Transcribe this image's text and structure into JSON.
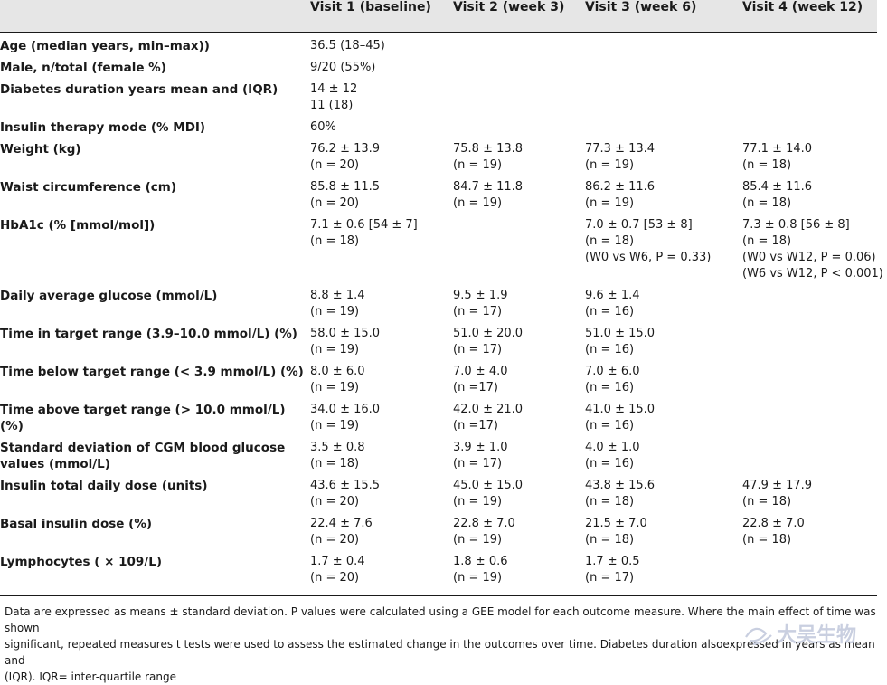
{
  "table": {
    "columns": [
      "",
      "Visit 1 (baseline)",
      "Visit 2 (week 3)",
      "Visit 3 (week 6)",
      "Visit 4 (week 12)"
    ],
    "rows": [
      {
        "variable": "Age (median years, min–max))",
        "v1": [
          "36.5 (18–45)"
        ],
        "v2": [],
        "v3": [],
        "v4": []
      },
      {
        "variable": "Male, n/total (female %)",
        "v1": [
          "9/20 (55%)"
        ],
        "v2": [],
        "v3": [],
        "v4": []
      },
      {
        "variable": "Diabetes duration years mean and (IQR)",
        "v1": [
          "14 ± 12",
          "11 (18)"
        ],
        "v2": [],
        "v3": [],
        "v4": []
      },
      {
        "variable": "Insulin therapy mode (% MDI)",
        "v1": [
          "60%"
        ],
        "v2": [],
        "v3": [],
        "v4": []
      },
      {
        "variable": "Weight (kg)",
        "v1": [
          "76.2 ± 13.9",
          "(n = 20)"
        ],
        "v2": [
          "75.8 ± 13.8",
          "(n = 19)"
        ],
        "v3": [
          "77.3 ± 13.4",
          "(n = 19)"
        ],
        "v4": [
          "77.1 ± 14.0",
          "(n = 18)"
        ]
      },
      {
        "variable": "Waist circumference (cm)",
        "v1": [
          "85.8 ± 11.5",
          "(n = 20)"
        ],
        "v2": [
          "84.7 ± 11.8",
          "(n = 19)"
        ],
        "v3": [
          "86.2 ± 11.6",
          "(n = 19)"
        ],
        "v4": [
          "85.4 ± 11.6",
          "(n = 18)"
        ]
      },
      {
        "variable": "HbA1c (% [mmol/mol])",
        "v1": [
          "7.1 ± 0.6 [54 ± 7]",
          "(n = 18)"
        ],
        "v2": [],
        "v3": [
          "7.0 ± 0.7  [53 ± 8]",
          "(n = 18)",
          "(W0 vs W6, P = 0.33)"
        ],
        "v4": [
          "7.3 ± 0.8 [56 ± 8]",
          "(n = 18)",
          "(W0 vs W12, P = 0.06)",
          "(W6 vs W12, P < 0.001)"
        ]
      },
      {
        "variable": "Daily average glucose (mmol/L)",
        "v1": [
          "8.8 ± 1.4",
          "(n = 19)"
        ],
        "v2": [
          "9.5 ± 1.9",
          "(n = 17)"
        ],
        "v3": [
          "9.6 ± 1.4",
          "(n = 16)"
        ],
        "v4": []
      },
      {
        "variable": "Time in target range (3.9–10.0 mmol/L) (%)",
        "v1": [
          "58.0 ± 15.0",
          "(n = 19)"
        ],
        "v2": [
          "51.0 ± 20.0",
          "(n = 17)"
        ],
        "v3": [
          "51.0 ± 15.0",
          "(n = 16)"
        ],
        "v4": []
      },
      {
        "variable": "Time below target range (< 3.9 mmol/L) (%)",
        "v1": [
          "8.0 ± 6.0",
          "(n = 19)"
        ],
        "v2": [
          "7.0 ± 4.0",
          "(n  =17)"
        ],
        "v3": [
          "7.0 ± 6.0",
          "(n = 16)"
        ],
        "v4": []
      },
      {
        "variable": "Time above target range (> 10.0 mmol/L)  (%)",
        "v1": [
          "34.0 ± 16.0",
          "(n = 19)"
        ],
        "v2": [
          "42.0 ± 21.0",
          "(n  =17)"
        ],
        "v3": [
          "41.0 ± 15.0",
          "(n = 16)"
        ],
        "v4": []
      },
      {
        "variable": "Standard deviation of CGM blood glucose values (mmol/L)",
        "v1": [
          "3.5 ± 0.8",
          "(n = 18)"
        ],
        "v2": [
          "3.9 ± 1.0",
          "(n = 17)"
        ],
        "v3": [
          "4.0 ± 1.0",
          "(n = 16)"
        ],
        "v4": []
      },
      {
        "variable": "Insulin total daily dose (units)",
        "v1": [
          "43.6 ± 15.5",
          "(n = 20)"
        ],
        "v2": [
          "45.0 ± 15.0",
          "(n = 19)"
        ],
        "v3": [
          "43.8 ± 15.6",
          "(n = 18)"
        ],
        "v4": [
          "47.9 ± 17.9",
          "(n = 18)"
        ]
      },
      {
        "variable": "Basal insulin dose (%)",
        "v1": [
          "22.4 ± 7.6",
          "(n = 20)"
        ],
        "v2": [
          "22.8 ± 7.0",
          "(n = 19)"
        ],
        "v3": [
          "21.5 ± 7.0",
          "(n = 18)"
        ],
        "v4": [
          "22.8 ± 7.0",
          "(n = 18)"
        ]
      },
      {
        "variable": "Lymphocytes ( × 109/L)",
        "v1": [
          "1.7 ± 0.4",
          "(n = 20)"
        ],
        "v2": [
          "1.8 ± 0.6",
          "(n = 19)"
        ],
        "v3": [
          "1.7 ± 0.5",
          "(n = 17)"
        ],
        "v4": []
      }
    ]
  },
  "footnote": {
    "line1": "Data are expressed as means ± standard deviation. P values were calculated using a GEE model for each outcome measure. Where the main effect of time was shown",
    "line2": "significant, repeated measures t tests were used to assess the estimated change in the outcomes over time. Diabetes duration alsoexpressed in years as mean and",
    "line3": "(IQR). IQR= inter-quartile range"
  },
  "watermark": {
    "text": "大吴生物",
    "color": "#c9cfe0"
  }
}
